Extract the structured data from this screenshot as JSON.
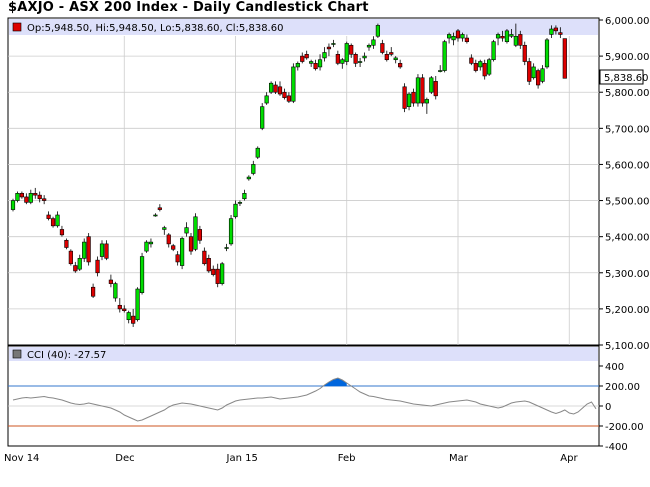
{
  "title": "$AXJO - ASX 200 Index - Daily Candlestick Chart",
  "colors": {
    "up": "#00dd00",
    "down": "#dd0000",
    "outline": "#000000",
    "grid": "#cccccc",
    "legend_bg": "#dde0fa",
    "cci_line": "#888888",
    "cci_peak": "#0066dd",
    "ref_up": "#3377cc",
    "ref_down": "#cc5522"
  },
  "chart_data": [
    {
      "type": "candlestick",
      "legend": "Op:5,948.50, Hi:5,948.50, Lo:5,838.60, Cl:5,838.60",
      "last_price_label": "5,838.60",
      "ylim": [
        5100,
        6000
      ],
      "y_ticks": [
        "6,000.00",
        "5,900.00",
        "5,800.00",
        "5,700.00",
        "5,600.00",
        "5,500.00",
        "5,400.00",
        "5,300.00",
        "5,200.00",
        "5,100.00"
      ],
      "x_ticks": [
        "Nov 14",
        "Dec",
        "Jan 15",
        "Feb",
        "Mar",
        "Apr"
      ],
      "x_tick_index": [
        0,
        25,
        50,
        75,
        100,
        125
      ],
      "candles": [
        [
          5475,
          5505,
          5470,
          5500
        ],
        [
          5500,
          5525,
          5495,
          5520
        ],
        [
          5520,
          5525,
          5505,
          5510
        ],
        [
          5510,
          5520,
          5490,
          5495
        ],
        [
          5495,
          5530,
          5490,
          5520
        ],
        [
          5520,
          5535,
          5505,
          5515
        ],
        [
          5515,
          5525,
          5495,
          5505
        ],
        [
          5505,
          5515,
          5490,
          5500
        ],
        [
          5460,
          5470,
          5445,
          5450
        ],
        [
          5450,
          5455,
          5425,
          5430
        ],
        [
          5430,
          5470,
          5425,
          5460
        ],
        [
          5420,
          5430,
          5400,
          5405
        ],
        [
          5390,
          5395,
          5365,
          5370
        ],
        [
          5360,
          5365,
          5320,
          5325
        ],
        [
          5320,
          5330,
          5300,
          5305
        ],
        [
          5310,
          5350,
          5305,
          5340
        ],
        [
          5340,
          5395,
          5330,
          5385
        ],
        [
          5400,
          5410,
          5320,
          5330
        ],
        [
          5260,
          5270,
          5230,
          5235
        ],
        [
          5335,
          5345,
          5290,
          5300
        ],
        [
          5345,
          5390,
          5335,
          5380
        ],
        [
          5380,
          5390,
          5335,
          5340
        ],
        [
          5280,
          5295,
          5260,
          5270
        ],
        [
          5230,
          5275,
          5220,
          5270
        ],
        [
          5210,
          5230,
          5190,
          5200
        ],
        [
          5200,
          5210,
          5190,
          5195
        ],
        [
          5170,
          5195,
          5160,
          5190
        ],
        [
          5180,
          5200,
          5150,
          5160
        ],
        [
          5170,
          5260,
          5165,
          5255
        ],
        [
          5245,
          5355,
          5240,
          5345
        ],
        [
          5360,
          5390,
          5355,
          5385
        ],
        [
          5380,
          5395,
          5370,
          5385
        ],
        [
          5460,
          5465,
          5455,
          5460
        ],
        [
          5480,
          5490,
          5470,
          5475
        ],
        [
          5420,
          5430,
          5405,
          5425
        ],
        [
          5405,
          5410,
          5370,
          5380
        ],
        [
          5375,
          5380,
          5360,
          5365
        ],
        [
          5350,
          5360,
          5320,
          5330
        ],
        [
          5320,
          5400,
          5310,
          5395
        ],
        [
          5410,
          5440,
          5400,
          5425
        ],
        [
          5400,
          5410,
          5350,
          5360
        ],
        [
          5365,
          5465,
          5360,
          5455
        ],
        [
          5420,
          5430,
          5380,
          5390
        ],
        [
          5360,
          5370,
          5320,
          5325
        ],
        [
          5340,
          5350,
          5300,
          5305
        ],
        [
          5310,
          5320,
          5290,
          5295
        ],
        [
          5310,
          5325,
          5260,
          5270
        ],
        [
          5270,
          5330,
          5265,
          5325
        ],
        [
          5370,
          5380,
          5360,
          5370
        ],
        [
          5380,
          5460,
          5375,
          5450
        ],
        [
          5455,
          5500,
          5450,
          5490
        ],
        [
          5495,
          5500,
          5485,
          5495
        ],
        [
          5505,
          5530,
          5500,
          5520
        ],
        [
          5560,
          5570,
          5555,
          5565
        ],
        [
          5575,
          5610,
          5570,
          5600
        ],
        [
          5620,
          5650,
          5615,
          5645
        ],
        [
          5700,
          5770,
          5695,
          5760
        ],
        [
          5770,
          5800,
          5765,
          5790
        ],
        [
          5800,
          5830,
          5795,
          5825
        ],
        [
          5820,
          5830,
          5795,
          5800
        ],
        [
          5815,
          5830,
          5790,
          5795
        ],
        [
          5800,
          5810,
          5780,
          5785
        ],
        [
          5790,
          5800,
          5770,
          5775
        ],
        [
          5775,
          5880,
          5770,
          5870
        ],
        [
          5870,
          5885,
          5860,
          5880
        ],
        [
          5900,
          5910,
          5880,
          5885
        ],
        [
          5905,
          5915,
          5890,
          5895
        ],
        [
          5880,
          5890,
          5870,
          5885
        ],
        [
          5880,
          5890,
          5860,
          5865
        ],
        [
          5870,
          5905,
          5860,
          5890
        ],
        [
          5895,
          5925,
          5885,
          5910
        ],
        [
          5925,
          5935,
          5900,
          5920
        ],
        [
          5935,
          5945,
          5925,
          5935
        ],
        [
          5905,
          5915,
          5875,
          5880
        ],
        [
          5880,
          5895,
          5865,
          5890
        ],
        [
          5885,
          5940,
          5875,
          5935
        ],
        [
          5930,
          5935,
          5895,
          5905
        ],
        [
          5905,
          5910,
          5870,
          5880
        ],
        [
          5885,
          5895,
          5870,
          5885
        ],
        [
          5895,
          5910,
          5885,
          5900
        ],
        [
          5925,
          5935,
          5915,
          5930
        ],
        [
          5930,
          5955,
          5920,
          5945
        ],
        [
          5955,
          5990,
          5950,
          5985
        ],
        [
          5935,
          5945,
          5905,
          5910
        ],
        [
          5905,
          5915,
          5885,
          5890
        ],
        [
          5910,
          5925,
          5900,
          5905
        ],
        [
          5890,
          5900,
          5880,
          5895
        ],
        [
          5880,
          5890,
          5865,
          5870
        ],
        [
          5815,
          5825,
          5745,
          5755
        ],
        [
          5760,
          5800,
          5750,
          5795
        ],
        [
          5800,
          5810,
          5760,
          5770
        ],
        [
          5770,
          5850,
          5760,
          5840
        ],
        [
          5840,
          5850,
          5760,
          5770
        ],
        [
          5770,
          5785,
          5740,
          5780
        ],
        [
          5800,
          5845,
          5795,
          5840
        ],
        [
          5830,
          5845,
          5780,
          5790
        ],
        [
          5860,
          5875,
          5855,
          5860
        ],
        [
          5860,
          5945,
          5855,
          5940
        ],
        [
          5950,
          5965,
          5935,
          5960
        ],
        [
          5945,
          5965,
          5930,
          5955
        ],
        [
          5970,
          5975,
          5940,
          5950
        ],
        [
          5950,
          5965,
          5940,
          5960
        ],
        [
          5950,
          5960,
          5935,
          5940
        ],
        [
          5895,
          5905,
          5875,
          5880
        ],
        [
          5880,
          5890,
          5855,
          5860
        ],
        [
          5870,
          5890,
          5860,
          5885
        ],
        [
          5880,
          5890,
          5835,
          5845
        ],
        [
          5850,
          5895,
          5845,
          5890
        ],
        [
          5890,
          5945,
          5885,
          5940
        ],
        [
          5950,
          5965,
          5930,
          5960
        ],
        [
          5955,
          5970,
          5940,
          5950
        ],
        [
          5940,
          5975,
          5935,
          5970
        ],
        [
          5955,
          5975,
          5950,
          5960
        ],
        [
          5930,
          5990,
          5925,
          5955
        ],
        [
          5960,
          5970,
          5920,
          5930
        ],
        [
          5930,
          5940,
          5875,
          5885
        ],
        [
          5885,
          5895,
          5820,
          5830
        ],
        [
          5840,
          5880,
          5835,
          5870
        ],
        [
          5860,
          5865,
          5810,
          5820
        ],
        [
          5830,
          5875,
          5825,
          5865
        ],
        [
          5870,
          5950,
          5865,
          5945
        ],
        [
          5960,
          5985,
          5950,
          5975
        ],
        [
          5978,
          5985,
          5960,
          5970
        ],
        [
          5965,
          5980,
          5950,
          5960
        ],
        [
          5948.5,
          5948.5,
          5838.6,
          5838.6
        ]
      ]
    },
    {
      "type": "line",
      "legend": "CCI (40): -27.57",
      "ylim": [
        -400,
        400
      ],
      "y_ticks": [
        "400",
        "200",
        "0",
        "-200",
        "-400"
      ],
      "ref_labels": [
        "200.00",
        "-200.00"
      ],
      "ref_values": [
        200,
        -200
      ],
      "values": [
        60,
        70,
        80,
        85,
        80,
        85,
        90,
        95,
        85,
        80,
        70,
        60,
        45,
        30,
        20,
        15,
        20,
        30,
        20,
        10,
        0,
        -10,
        -20,
        -40,
        -60,
        -90,
        -110,
        -130,
        -150,
        -140,
        -120,
        -100,
        -80,
        -60,
        -40,
        -10,
        10,
        20,
        30,
        25,
        20,
        10,
        0,
        -10,
        -20,
        -30,
        -40,
        -20,
        10,
        30,
        50,
        60,
        65,
        70,
        75,
        80,
        80,
        85,
        90,
        80,
        70,
        75,
        80,
        85,
        90,
        100,
        110,
        130,
        150,
        175,
        210,
        240,
        265,
        280,
        260,
        230,
        200,
        170,
        140,
        120,
        100,
        95,
        85,
        75,
        65,
        60,
        55,
        50,
        40,
        30,
        20,
        15,
        10,
        5,
        0,
        10,
        20,
        30,
        40,
        45,
        50,
        55,
        60,
        50,
        40,
        20,
        10,
        0,
        -10,
        -20,
        -10,
        10,
        30,
        40,
        45,
        50,
        40,
        20,
        0,
        -20,
        -40,
        -60,
        -75,
        -60,
        -40,
        -70,
        -80,
        -60,
        -20,
        20,
        40,
        -27.57
      ]
    }
  ]
}
